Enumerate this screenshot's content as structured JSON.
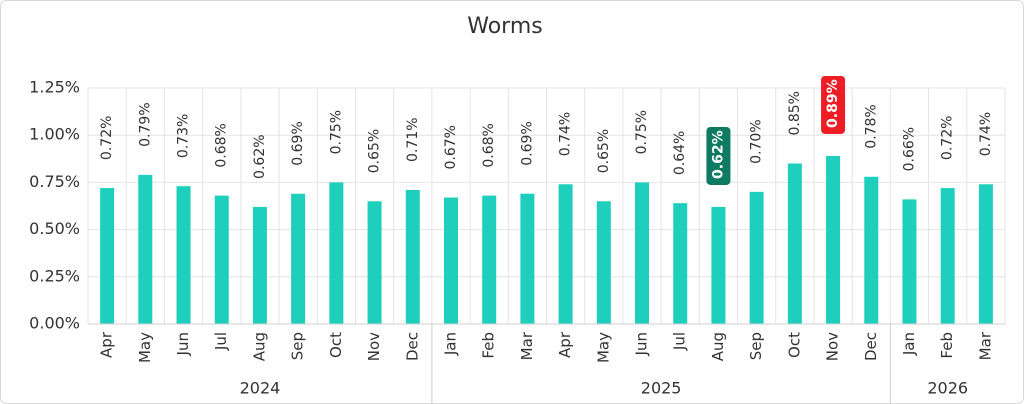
{
  "chart_data": {
    "type": "bar",
    "title": "Worms",
    "groups": [
      {
        "name": "2024",
        "categories": [
          "Apr",
          "May",
          "Jun",
          "Jul",
          "Aug",
          "Sep",
          "Oct",
          "Nov",
          "Dec"
        ]
      },
      {
        "name": "2025",
        "categories": [
          "Jan",
          "Feb",
          "Mar",
          "Apr",
          "May",
          "Jun",
          "Jul",
          "Aug",
          "Sep",
          "Oct",
          "Nov",
          "Dec"
        ]
      },
      {
        "name": "2026",
        "categories": [
          "Jan",
          "Feb",
          "Mar"
        ]
      }
    ],
    "values": [
      0.72,
      0.79,
      0.73,
      0.68,
      0.62,
      0.69,
      0.75,
      0.65,
      0.71,
      0.67,
      0.68,
      0.69,
      0.74,
      0.65,
      0.75,
      0.64,
      0.62,
      0.7,
      0.85,
      0.89,
      0.78,
      0.66,
      0.72,
      0.74
    ],
    "value_labels": [
      "0.72%",
      "0.79%",
      "0.73%",
      "0.68%",
      "0.62%",
      "0.69%",
      "0.75%",
      "0.65%",
      "0.71%",
      "0.67%",
      "0.68%",
      "0.69%",
      "0.74%",
      "0.65%",
      "0.75%",
      "0.64%",
      "0.62%",
      "0.70%",
      "0.85%",
      "0.89%",
      "0.78%",
      "0.66%",
      "0.72%",
      "0.74%"
    ],
    "color": "#1fcfbd",
    "min_color": "#0e7a61",
    "max_color": "#ee1c25",
    "ylim": [
      0,
      1.25
    ],
    "yticks": [
      {
        "value": 0,
        "label": "0.00%"
      },
      {
        "value": 0.25,
        "label": "0.25%"
      },
      {
        "value": 0.5,
        "label": "0.50%"
      },
      {
        "value": 0.75,
        "label": "0.75%"
      },
      {
        "value": 1,
        "label": "1.00%"
      },
      {
        "value": 1.25,
        "label": "1.25%"
      }
    ],
    "grid": true
  }
}
